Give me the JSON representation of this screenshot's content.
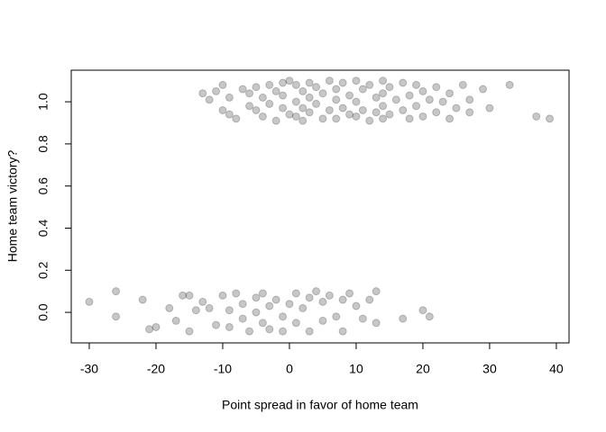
{
  "chart_data": {
    "type": "scatter",
    "xlabel": "Point spread in favor of home team",
    "ylabel": "Home team victory?",
    "xlim": [
      -32.7,
      41.9
    ],
    "ylim": [
      -0.145,
      1.15
    ],
    "xticks": [
      -30,
      -20,
      -10,
      0,
      10,
      20,
      30,
      40
    ],
    "yticks": [
      {
        "value": 0,
        "label": "0.0"
      },
      0.2,
      0.4,
      0.6,
      0.8,
      {
        "value": 1,
        "label": "1.0"
      }
    ],
    "color": "#000000",
    "alpha": 0.22,
    "x": [
      -13,
      -12,
      -11,
      -10,
      -10,
      -9,
      -9,
      -8,
      -7,
      -6,
      -6,
      -5,
      -5,
      -4,
      -4,
      -3,
      -3,
      -2,
      -2,
      -1,
      -1,
      -1,
      0,
      0,
      1,
      1,
      1,
      2,
      2,
      2,
      3,
      3,
      3,
      4,
      4,
      5,
      5,
      6,
      6,
      7,
      7,
      7,
      8,
      8,
      9,
      9,
      10,
      10,
      10,
      11,
      11,
      12,
      12,
      13,
      13,
      14,
      14,
      14,
      14,
      15,
      15,
      16,
      17,
      17,
      18,
      18,
      19,
      19,
      20,
      20,
      21,
      22,
      22,
      23,
      24,
      24,
      25,
      26,
      27,
      27,
      29,
      30,
      33,
      37,
      39,
      -30,
      -26,
      -26,
      -22,
      -21,
      -20,
      -18,
      -17,
      -16,
      -15,
      -15,
      -14,
      -13,
      -12,
      -11,
      -10,
      -9,
      -9,
      -8,
      -7,
      -7,
      -6,
      -5,
      -5,
      -4,
      -4,
      -3,
      -3,
      -2,
      -1,
      -1,
      0,
      1,
      1,
      2,
      3,
      3,
      4,
      5,
      5,
      6,
      7,
      8,
      8,
      9,
      10,
      11,
      12,
      13,
      13,
      17,
      20,
      21
    ],
    "values": [
      1.04,
      1.01,
      1.05,
      1.08,
      0.96,
      0.94,
      1.02,
      0.92,
      1.06,
      0.98,
      1.04,
      0.96,
      1.07,
      1.02,
      0.93,
      1.08,
      0.99,
      1.05,
      0.91,
      1.09,
      0.97,
      1.03,
      1.1,
      0.94,
      1.08,
      1.0,
      0.93,
      1.05,
      0.97,
      0.91,
      1.09,
      1.02,
      0.95,
      1.07,
      0.99,
      1.04,
      0.92,
      1.1,
      0.96,
      1.06,
      1.01,
      0.92,
      1.09,
      0.97,
      1.03,
      0.94,
      1.1,
      1.0,
      0.93,
      1.06,
      0.96,
      1.08,
      0.91,
      1.02,
      0.95,
      1.1,
      1.04,
      0.98,
      0.92,
      1.07,
      0.94,
      1.01,
      1.09,
      0.96,
      1.03,
      0.92,
      1.08,
      0.98,
      1.05,
      0.93,
      1.01,
      1.07,
      0.95,
      1.0,
      1.04,
      0.92,
      0.97,
      1.08,
      0.95,
      1.01,
      1.06,
      0.97,
      1.08,
      0.93,
      0.92,
      0.05,
      0.1,
      -0.02,
      0.06,
      -0.08,
      -0.07,
      0.02,
      -0.04,
      0.08,
      0.08,
      -0.09,
      0.01,
      0.05,
      0.02,
      -0.06,
      0.08,
      0.01,
      -0.07,
      0.09,
      0.04,
      -0.03,
      -0.09,
      0.07,
      0.0,
      -0.05,
      0.09,
      0.03,
      -0.08,
      0.06,
      -0.02,
      -0.09,
      0.04,
      0.09,
      -0.05,
      0.02,
      -0.09,
      0.07,
      0.1,
      -0.04,
      0.05,
      0.08,
      -0.02,
      0.06,
      -0.09,
      0.09,
      0.03,
      -0.03,
      0.06,
      0.1,
      -0.05,
      -0.03,
      0.01,
      -0.02
    ]
  }
}
